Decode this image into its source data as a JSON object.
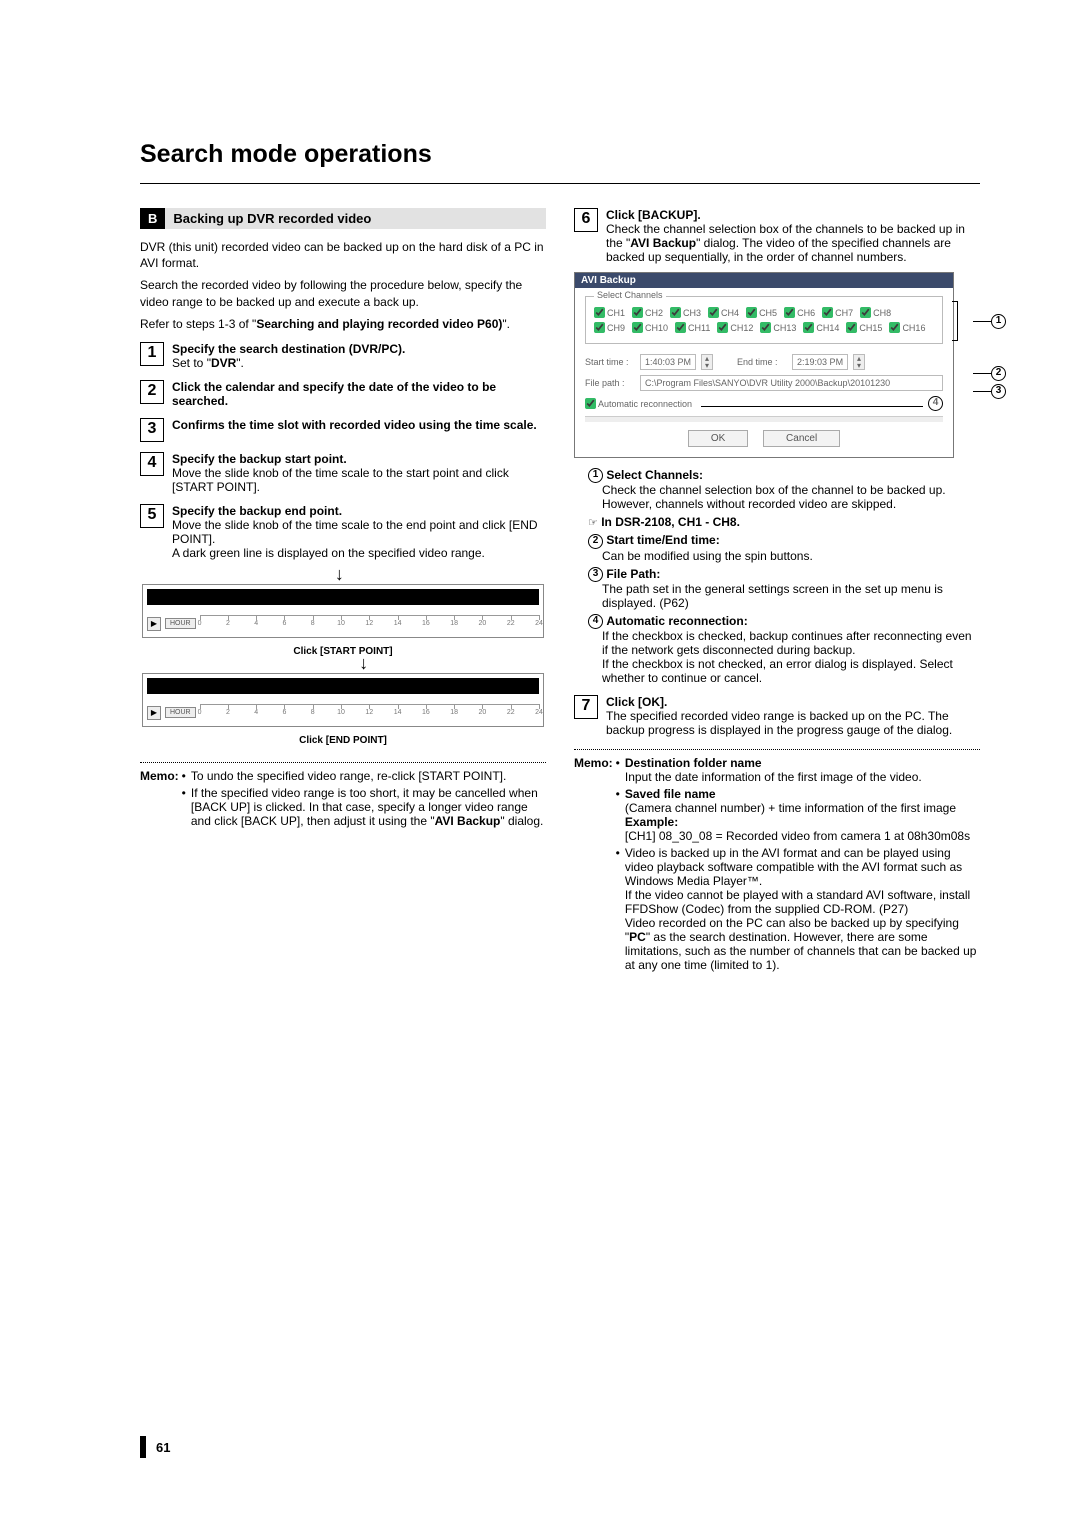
{
  "page_title": "Search mode operations",
  "page_number": "61",
  "section": {
    "badge": "B",
    "title": "Backing up DVR recorded video"
  },
  "left_intro": [
    "DVR (this unit) recorded video can be backed up on the hard disk of a PC in AVI format.",
    "Search the recorded video by following the procedure below, specify the video range to be backed up and execute a back up."
  ],
  "left_ref_prefix": "Refer to steps 1-3 of \"",
  "left_ref_bold": "Searching and playing recorded video P60)",
  "left_ref_suffix": "\".",
  "steps_left": [
    {
      "n": "1",
      "lead": "Specify the search destination (DVR/PC).",
      "body_prefix": "Set to \"",
      "body_bold": "DVR",
      "body_suffix": "\"."
    },
    {
      "n": "2",
      "lead": "Click the calendar and specify the date of the video to be searched."
    },
    {
      "n": "3",
      "lead": "Confirms the time slot with recorded video using the time scale."
    },
    {
      "n": "4",
      "lead": "Specify the backup start point.",
      "body": "Move the slide knob of the time scale to the start point and click [START POINT]."
    },
    {
      "n": "5",
      "lead": "Specify the backup end point.",
      "body": "Move the slide knob of the time scale to the end point and click [END POINT].",
      "body2": "A dark green line is displayed on the specified video range."
    }
  ],
  "timeline": {
    "hour_label": "HOUR",
    "ticks": [
      "0",
      "2",
      "4",
      "6",
      "8",
      "10",
      "12",
      "14",
      "16",
      "18",
      "20",
      "22",
      "24"
    ],
    "caption_start": "Click [START POINT]",
    "caption_end": "Click [END POINT]"
  },
  "left_memo": {
    "label": "Memo:",
    "items": [
      "To undo the specified video range, re-click [START POINT].",
      "If the specified video range is too short, it may be cancelled when [BACK UP] is clicked. In that case, specify a longer video range and click [BACK UP], then adjust it using the \"AVI Backup\" dialog."
    ],
    "avi_bold": "AVI Backup"
  },
  "step6": {
    "n": "6",
    "lead": "Click [BACKUP].",
    "body_pre": "Check the channel selection box of the channels to be backed up in the \"",
    "body_bold": "AVI Backup",
    "body_post": "\" dialog. The video of the specified channels are backed up sequentially, in the order of channel numbers."
  },
  "dialog": {
    "title": "AVI Backup",
    "legend": "Select Channels",
    "channels_row1": [
      "CH1",
      "CH2",
      "CH3",
      "CH4",
      "CH5",
      "CH6",
      "CH7",
      "CH8"
    ],
    "channels_row2": [
      "CH9",
      "CH10",
      "CH11",
      "CH12",
      "CH13",
      "CH14",
      "CH15",
      "CH16"
    ],
    "start_label": "Start time :",
    "start_val": "1:40:03 PM",
    "end_label": "End time :",
    "end_val": "2:19:03 PM",
    "path_label": "File path :",
    "path_val": "C:\\Program Files\\SANYO\\DVR Utility 2000\\Backup\\20101230",
    "auto_label": "Automatic reconnection",
    "ok": "OK",
    "cancel": "Cancel",
    "annot": {
      "a1": "1",
      "a2": "2",
      "a3": "3",
      "a4": "4"
    }
  },
  "right_items": {
    "i1_title": "Select Channels:",
    "i1_a": "Check the channel selection box of the channel to be backed up.",
    "i1_b": "However, channels without recorded video are skipped.",
    "note_line": "In DSR-2108, CH1 - CH8.",
    "i2_title": "Start time/End time:",
    "i2_a": "Can be modified using the spin buttons.",
    "i3_title": "File Path:",
    "i3_a": "The path set in the general settings screen in the set up menu is displayed. (P62)",
    "i4_title": "Automatic reconnection:",
    "i4_a": "If the checkbox is checked, backup continues after reconnecting even if the network gets disconnected during backup.",
    "i4_b": "If the checkbox is not checked, an error dialog is displayed. Select whether to continue or cancel."
  },
  "step7": {
    "n": "7",
    "lead": "Click [OK].",
    "body": "The specified recorded video range is backed up on the PC. The backup progress is displayed in the progress gauge of the dialog."
  },
  "right_memo": {
    "label": "Memo:",
    "b1_title": "Destination folder name",
    "b1_body": "Input the date information of the first image of the video.",
    "b2_title": "Saved file name",
    "b2_body": "(Camera channel number) + time information of the first image",
    "ex_label": "Example:",
    "ex_body": "[CH1] 08_30_08 = Recorded video from camera 1 at 08h30m08s",
    "b3_body_a": "Video is backed up in the AVI format and can be played using video playback software compatible with the AVI format such as Windows Media Player™.",
    "b3_body_b": "If the video cannot be played with a standard AVI software, install FFDShow (Codec) from the supplied CD-ROM. (P27)",
    "b3_body_c_pre": "Video recorded on the PC can also be backed up by specifying \"",
    "b3_body_c_bold": "PC",
    "b3_body_c_post": "\" as the search destination. However, there are some limitations, such as the number of channels that can be backed up at any one time (limited to 1)."
  }
}
